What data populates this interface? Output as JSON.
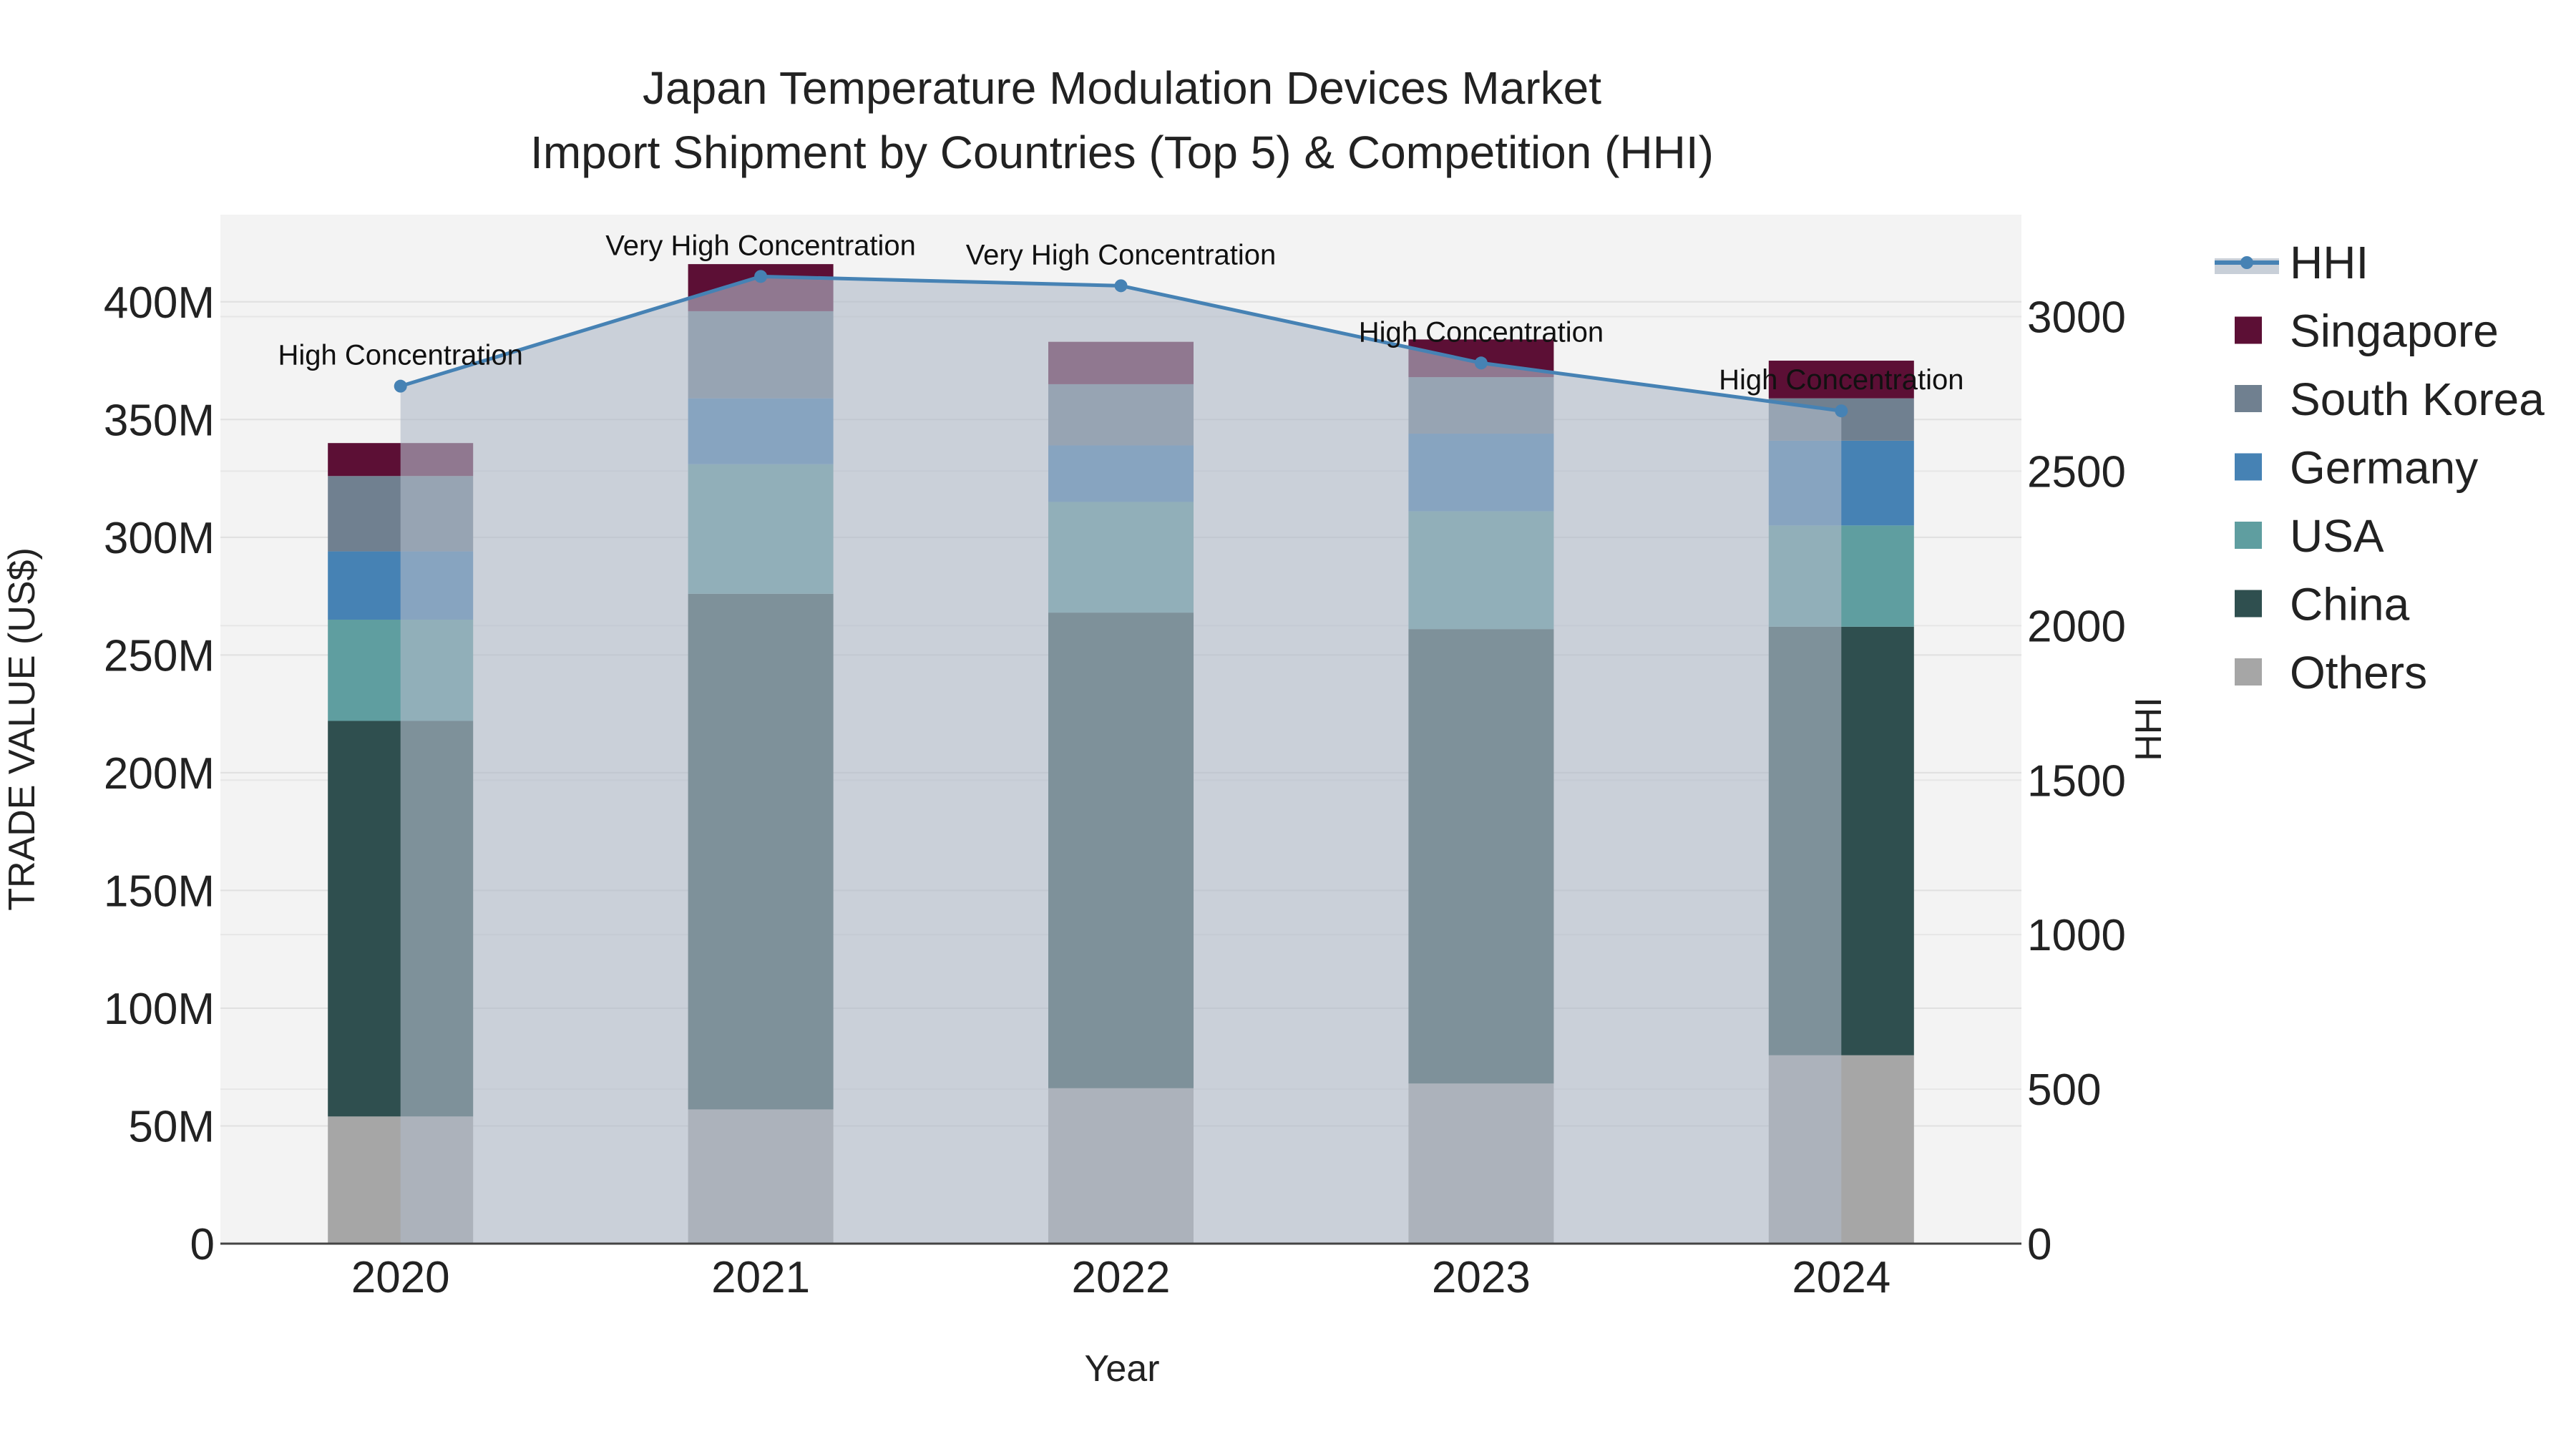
{
  "chart_data": {
    "type": "bar",
    "title": "Japan Temperature Modulation Devices Market",
    "subtitle": "Import Shipment by Countries (Top 5) & Competition (HHI)",
    "xlabel": "Year",
    "ylabel": "TRADE VALUE (US$)",
    "y2label": "HHI",
    "categories": [
      "2020",
      "2021",
      "2022",
      "2023",
      "2024"
    ],
    "ylim": [
      0,
      437000000
    ],
    "y2lim": [
      0,
      3330
    ],
    "yticks": [
      0,
      50000000,
      100000000,
      150000000,
      200000000,
      250000000,
      300000000,
      350000000,
      400000000
    ],
    "ytick_labels": [
      "0",
      "50M",
      "100M",
      "150M",
      "200M",
      "250M",
      "300M",
      "350M",
      "400M"
    ],
    "y2ticks": [
      0,
      500,
      1000,
      1500,
      2000,
      2500,
      3000
    ],
    "y2tick_labels": [
      "0",
      "500",
      "1000",
      "1500",
      "2000",
      "2500",
      "3000"
    ],
    "series": [
      {
        "name": "Others",
        "color": "#a6a6a6",
        "values": [
          54000000,
          57000000,
          66000000,
          68000000,
          80000000
        ]
      },
      {
        "name": "China",
        "color": "#2f4f4f",
        "values": [
          168000000,
          219000000,
          202000000,
          193000000,
          182000000
        ]
      },
      {
        "name": "USA",
        "color": "#5f9ea0",
        "values": [
          43000000,
          55000000,
          47000000,
          50000000,
          43000000
        ]
      },
      {
        "name": "Germany",
        "color": "#4682b4",
        "values": [
          29000000,
          28000000,
          24000000,
          33000000,
          36000000
        ]
      },
      {
        "name": "South Korea",
        "color": "#708090",
        "values": [
          32000000,
          37000000,
          26000000,
          24000000,
          18000000
        ]
      },
      {
        "name": "Singapore",
        "color": "#5c0f35",
        "values": [
          14000000,
          20000000,
          18000000,
          16000000,
          16000000
        ]
      }
    ],
    "hhi": {
      "name": "HHI",
      "color": "#4682b4",
      "values": [
        2775,
        3130,
        3100,
        2850,
        2695
      ],
      "labels": [
        "High Concentration",
        "Very High Concentration",
        "Very High Concentration",
        "High Concentration",
        "High Concentration"
      ]
    },
    "legend": [
      "HHI",
      "Singapore",
      "South Korea",
      "Germany",
      "USA",
      "China",
      "Others"
    ],
    "legend_position": "right",
    "grid": true
  }
}
